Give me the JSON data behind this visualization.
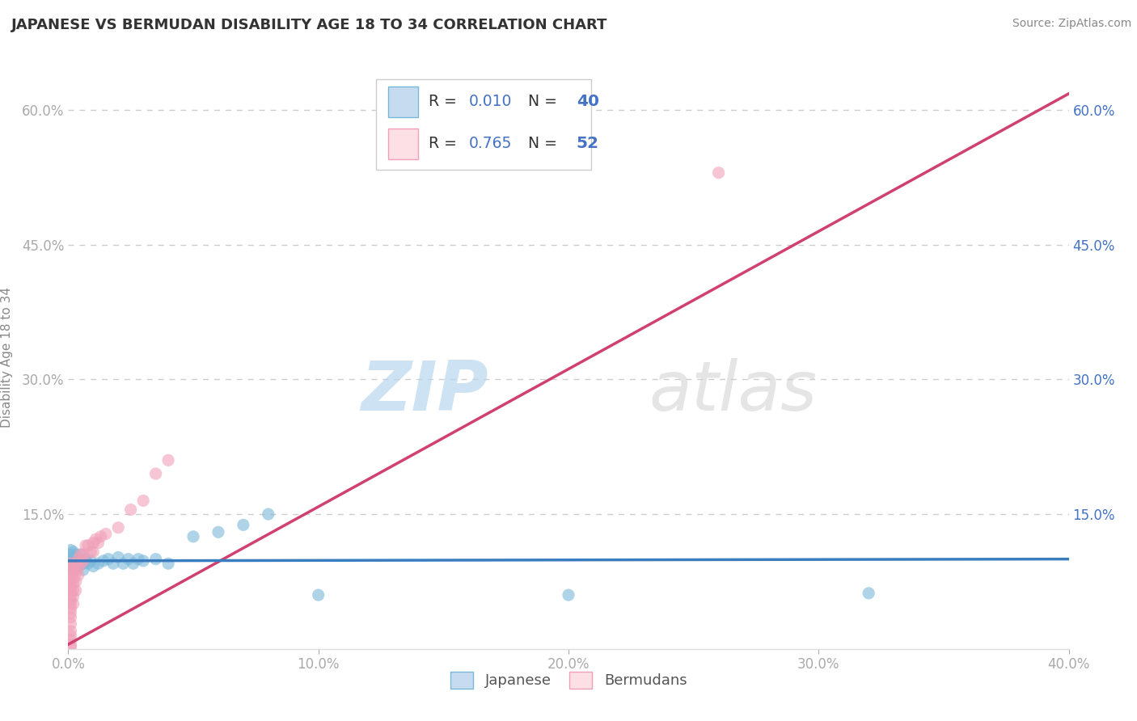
{
  "title": "JAPANESE VS BERMUDAN DISABILITY AGE 18 TO 34 CORRELATION CHART",
  "source": "Source: ZipAtlas.com",
  "ylabel": "Disability Age 18 to 34",
  "watermark_zip": "ZIP",
  "watermark_atlas": "atlas",
  "xlim": [
    0.0,
    0.4
  ],
  "ylim": [
    0.0,
    0.65
  ],
  "xticks": [
    0.0,
    0.1,
    0.2,
    0.3,
    0.4
  ],
  "yticks": [
    0.0,
    0.15,
    0.3,
    0.45,
    0.6
  ],
  "xtick_labels": [
    "0.0%",
    "10.0%",
    "20.0%",
    "30.0%",
    "40.0%"
  ],
  "left_ytick_labels": [
    "",
    "15.0%",
    "30.0%",
    "45.0%",
    "60.0%"
  ],
  "right_ytick_labels": [
    "",
    "15.0%",
    "30.0%",
    "45.0%",
    "60.0%"
  ],
  "background_color": "#ffffff",
  "grid_color": "#c8c8c8",
  "legend_R_blue": "0.010",
  "legend_N_blue": "40",
  "legend_R_pink": "0.765",
  "legend_N_pink": "52",
  "blue_color": "#7ab8d9",
  "pink_color": "#f0a0b8",
  "blue_fill": "#c6dbef",
  "pink_fill": "#fce0e6",
  "line_blue_color": "#3a7dbf",
  "line_pink_color": "#d04070",
  "title_color": "#333333",
  "axis_label_color": "#888888",
  "left_tick_color": "#aaaaaa",
  "right_tick_color": "#4472c4",
  "R_N_color": "#4472c4",
  "source_color": "#888888",
  "japanese_points": [
    [
      0.001,
      0.11
    ],
    [
      0.001,
      0.105
    ],
    [
      0.001,
      0.098
    ],
    [
      0.001,
      0.092
    ],
    [
      0.002,
      0.108
    ],
    [
      0.002,
      0.102
    ],
    [
      0.002,
      0.095
    ],
    [
      0.002,
      0.088
    ],
    [
      0.003,
      0.105
    ],
    [
      0.003,
      0.098
    ],
    [
      0.003,
      0.09
    ],
    [
      0.004,
      0.1
    ],
    [
      0.004,
      0.092
    ],
    [
      0.005,
      0.105
    ],
    [
      0.005,
      0.098
    ],
    [
      0.006,
      0.095
    ],
    [
      0.006,
      0.088
    ],
    [
      0.007,
      0.1
    ],
    [
      0.008,
      0.095
    ],
    [
      0.009,
      0.098
    ],
    [
      0.01,
      0.092
    ],
    [
      0.012,
      0.095
    ],
    [
      0.014,
      0.098
    ],
    [
      0.016,
      0.1
    ],
    [
      0.018,
      0.095
    ],
    [
      0.02,
      0.102
    ],
    [
      0.022,
      0.095
    ],
    [
      0.024,
      0.1
    ],
    [
      0.026,
      0.095
    ],
    [
      0.028,
      0.1
    ],
    [
      0.03,
      0.098
    ],
    [
      0.035,
      0.1
    ],
    [
      0.04,
      0.095
    ],
    [
      0.05,
      0.125
    ],
    [
      0.06,
      0.13
    ],
    [
      0.07,
      0.138
    ],
    [
      0.08,
      0.15
    ],
    [
      0.1,
      0.06
    ],
    [
      0.2,
      0.06
    ],
    [
      0.32,
      0.062
    ]
  ],
  "bermudan_points": [
    [
      0.001,
      0.095
    ],
    [
      0.001,
      0.09
    ],
    [
      0.001,
      0.085
    ],
    [
      0.001,
      0.08
    ],
    [
      0.001,
      0.075
    ],
    [
      0.001,
      0.07
    ],
    [
      0.001,
      0.065
    ],
    [
      0.001,
      0.06
    ],
    [
      0.001,
      0.055
    ],
    [
      0.001,
      0.05
    ],
    [
      0.001,
      0.045
    ],
    [
      0.001,
      0.04
    ],
    [
      0.001,
      0.035
    ],
    [
      0.001,
      0.028
    ],
    [
      0.001,
      0.02
    ],
    [
      0.001,
      0.015
    ],
    [
      0.001,
      0.01
    ],
    [
      0.001,
      0.005
    ],
    [
      0.001,
      0.002
    ],
    [
      0.002,
      0.092
    ],
    [
      0.002,
      0.085
    ],
    [
      0.002,
      0.078
    ],
    [
      0.002,
      0.072
    ],
    [
      0.002,
      0.065
    ],
    [
      0.002,
      0.058
    ],
    [
      0.002,
      0.05
    ],
    [
      0.003,
      0.095
    ],
    [
      0.003,
      0.085
    ],
    [
      0.003,
      0.075
    ],
    [
      0.003,
      0.065
    ],
    [
      0.004,
      0.1
    ],
    [
      0.004,
      0.09
    ],
    [
      0.004,
      0.082
    ],
    [
      0.005,
      0.105
    ],
    [
      0.005,
      0.095
    ],
    [
      0.006,
      0.105
    ],
    [
      0.006,
      0.098
    ],
    [
      0.007,
      0.115
    ],
    [
      0.008,
      0.115
    ],
    [
      0.009,
      0.108
    ],
    [
      0.01,
      0.118
    ],
    [
      0.01,
      0.108
    ],
    [
      0.011,
      0.122
    ],
    [
      0.012,
      0.118
    ],
    [
      0.013,
      0.125
    ],
    [
      0.015,
      0.128
    ],
    [
      0.02,
      0.135
    ],
    [
      0.025,
      0.155
    ],
    [
      0.03,
      0.165
    ],
    [
      0.035,
      0.195
    ],
    [
      0.04,
      0.21
    ],
    [
      0.26,
      0.53
    ]
  ],
  "pink_line_x": [
    0.0,
    0.4
  ],
  "pink_line_y": [
    0.005,
    0.618
  ],
  "blue_line_x": [
    0.0,
    0.4
  ],
  "blue_line_y": [
    0.098,
    0.1
  ]
}
